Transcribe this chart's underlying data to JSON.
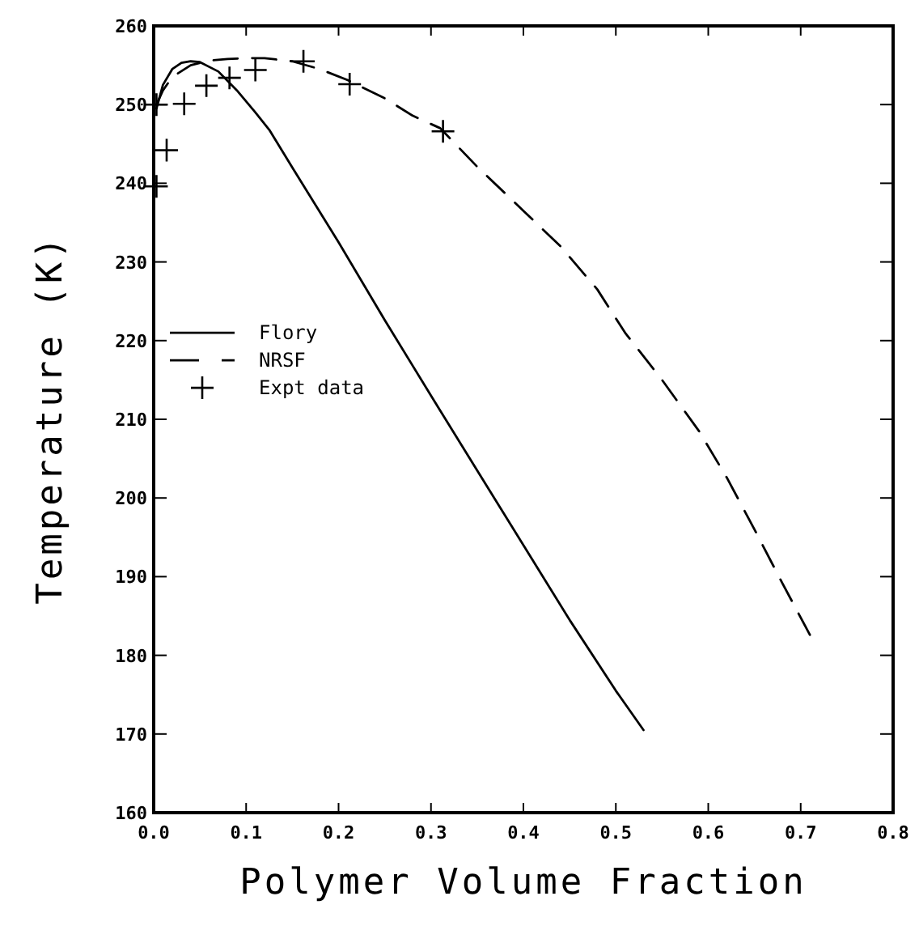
{
  "chart_data": {
    "type": "line",
    "xlabel": "Polymer Volume Fraction",
    "ylabel": "Temperature (K)",
    "xlim": [
      0,
      0.8
    ],
    "xticks": [
      {
        "value": 0,
        "label": "0.0"
      },
      0.1,
      0.2,
      0.3,
      0.4,
      0.5,
      0.6,
      0.7,
      0.8
    ],
    "ylim": [
      160,
      260
    ],
    "yticks": [
      160,
      170,
      180,
      190,
      200,
      210,
      220,
      230,
      240,
      250,
      260
    ],
    "grid": false,
    "legend": "left",
    "series": [
      {
        "name": "Flory",
        "line_style": "solid",
        "marker": "none",
        "color": "#000000",
        "x": [
          0.003,
          0.01,
          0.02,
          0.03,
          0.04,
          0.05,
          0.07,
          0.09,
          0.11,
          0.125,
          0.15,
          0.2,
          0.25,
          0.3,
          0.35,
          0.4,
          0.45,
          0.5,
          0.53
        ],
        "values": [
          249.5,
          252.5,
          254.5,
          255.3,
          255.5,
          255.4,
          254.2,
          251.8,
          249,
          246.8,
          242,
          232.5,
          222.6,
          213,
          203.5,
          194,
          184.5,
          175.5,
          170.5
        ]
      },
      {
        "name": "NRSF",
        "line_style": "dashed",
        "marker": "none",
        "color": "#000000",
        "x": [
          0.003,
          0.01,
          0.02,
          0.04,
          0.06,
          0.08,
          0.1,
          0.12,
          0.15,
          0.18,
          0.21,
          0.25,
          0.28,
          0.31,
          0.35,
          0.4,
          0.44,
          0.48,
          0.51,
          0.55,
          0.59,
          0.62,
          0.65,
          0.68,
          0.71
        ],
        "values": [
          250,
          251.8,
          253.5,
          255,
          255.6,
          255.8,
          255.9,
          255.9,
          255.5,
          254.5,
          253.1,
          250.8,
          248.6,
          247,
          242.1,
          236.5,
          232,
          226.5,
          221,
          215,
          208.5,
          202.6,
          196,
          189.2,
          182.6
        ]
      },
      {
        "name": "Expt data",
        "type": "scatter",
        "marker": "cross",
        "color": "#000000",
        "x": [
          0.003,
          0.003,
          0.014,
          0.033,
          0.057,
          0.082,
          0.11,
          0.162,
          0.212,
          0.313
        ],
        "values": [
          239.6,
          250,
          244.2,
          250.1,
          252.4,
          253.4,
          254.4,
          255.5,
          252.6,
          246.6
        ]
      }
    ]
  }
}
